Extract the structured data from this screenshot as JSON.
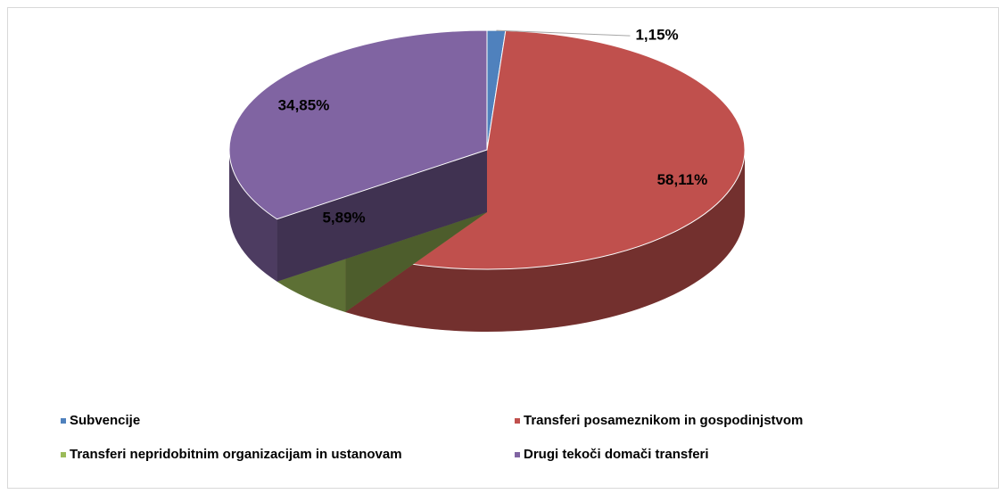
{
  "chart_data": {
    "type": "pie3d",
    "categories": [
      "Subvencije",
      "Transferi posameznikom in gospodinjstvom",
      "Transferi nepridobitnim organizacijam in ustanovam",
      "Drugi tekoči domači transferi"
    ],
    "values": [
      1.15,
      58.11,
      5.89,
      34.85
    ],
    "value_labels": [
      "1,15%",
      "58,11%",
      "5,89%",
      "34,85%"
    ],
    "colors": [
      "#4f81bd",
      "#c0504d",
      "#9bbb59",
      "#8064a2"
    ],
    "legend": "bottom"
  }
}
